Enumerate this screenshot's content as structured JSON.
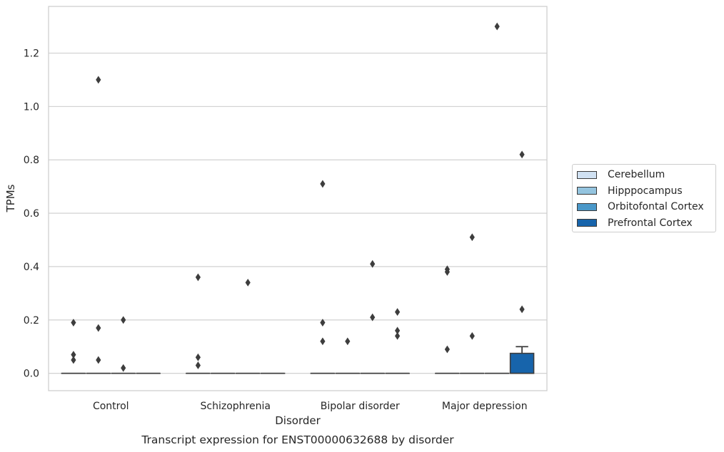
{
  "chart_data": {
    "type": "box",
    "title": "",
    "caption": "Transcript expression for ENST00000632688 by disorder",
    "xlabel": "Disorder",
    "ylabel": "TPMs",
    "ylim": [
      -0.065,
      1.375
    ],
    "yticks": [
      "0.0",
      "0.2",
      "0.4",
      "0.6",
      "0.8",
      "1.0",
      "1.2"
    ],
    "ytick_values": [
      0.0,
      0.2,
      0.4,
      0.6,
      0.8,
      1.0,
      1.2
    ],
    "grid": "horizontal",
    "legend_position": "right",
    "categories": [
      "Control",
      "Schizophrenia",
      "Bipolar disorder",
      "Major depression"
    ],
    "series": [
      {
        "name": "Cerebellum",
        "color": "#d0e1f2",
        "boxes": [
          {
            "q1": 0,
            "median": 0,
            "q3": 0,
            "whisker_low": 0,
            "whisker_high": 0,
            "outliers": [
              0.19,
              0.07,
              0.05
            ]
          },
          {
            "q1": 0,
            "median": 0,
            "q3": 0,
            "whisker_low": 0,
            "whisker_high": 0,
            "outliers": [
              0.36,
              0.06,
              0.03
            ]
          },
          {
            "q1": 0,
            "median": 0,
            "q3": 0,
            "whisker_low": 0,
            "whisker_high": 0,
            "outliers": [
              0.71,
              0.19,
              0.12
            ]
          },
          {
            "q1": 0,
            "median": 0,
            "q3": 0,
            "whisker_low": 0,
            "whisker_high": 0,
            "outliers": [
              0.39,
              0.38,
              0.09
            ]
          }
        ]
      },
      {
        "name": "Hipppocampus",
        "color": "#94c4df",
        "boxes": [
          {
            "q1": 0,
            "median": 0,
            "q3": 0,
            "whisker_low": 0,
            "whisker_high": 0,
            "outliers": [
              1.1,
              0.17,
              0.05
            ]
          },
          {
            "q1": 0,
            "median": 0,
            "q3": 0,
            "whisker_low": 0,
            "whisker_high": 0,
            "outliers": []
          },
          {
            "q1": 0,
            "median": 0,
            "q3": 0,
            "whisker_low": 0,
            "whisker_high": 0,
            "outliers": [
              0.12
            ]
          },
          {
            "q1": 0,
            "median": 0,
            "q3": 0,
            "whisker_low": 0,
            "whisker_high": 0,
            "outliers": [
              0.51,
              0.14
            ]
          }
        ]
      },
      {
        "name": "Orbitofontal Cortex",
        "color": "#4a98c9",
        "boxes": [
          {
            "q1": 0,
            "median": 0,
            "q3": 0,
            "whisker_low": 0,
            "whisker_high": 0,
            "outliers": [
              0.2,
              0.02
            ]
          },
          {
            "q1": 0,
            "median": 0,
            "q3": 0,
            "whisker_low": 0,
            "whisker_high": 0,
            "outliers": [
              0.34
            ]
          },
          {
            "q1": 0,
            "median": 0,
            "q3": 0,
            "whisker_low": 0,
            "whisker_high": 0,
            "outliers": [
              0.41,
              0.21
            ]
          },
          {
            "q1": 0,
            "median": 0,
            "q3": 0,
            "whisker_low": 0,
            "whisker_high": 0,
            "outliers": [
              1.3
            ]
          }
        ]
      },
      {
        "name": "Prefrontal Cortex",
        "color": "#1764ab",
        "boxes": [
          {
            "q1": 0,
            "median": 0,
            "q3": 0,
            "whisker_low": 0,
            "whisker_high": 0,
            "outliers": []
          },
          {
            "q1": 0,
            "median": 0,
            "q3": 0,
            "whisker_low": 0,
            "whisker_high": 0,
            "outliers": []
          },
          {
            "q1": 0,
            "median": 0,
            "q3": 0,
            "whisker_low": 0,
            "whisker_high": 0,
            "outliers": [
              0.23,
              0.16,
              0.14
            ]
          },
          {
            "q1": 0,
            "median": 0,
            "q3": 0.075,
            "whisker_low": 0,
            "whisker_high": 0.1,
            "outliers": [
              0.82,
              0.24
            ]
          }
        ]
      }
    ]
  }
}
